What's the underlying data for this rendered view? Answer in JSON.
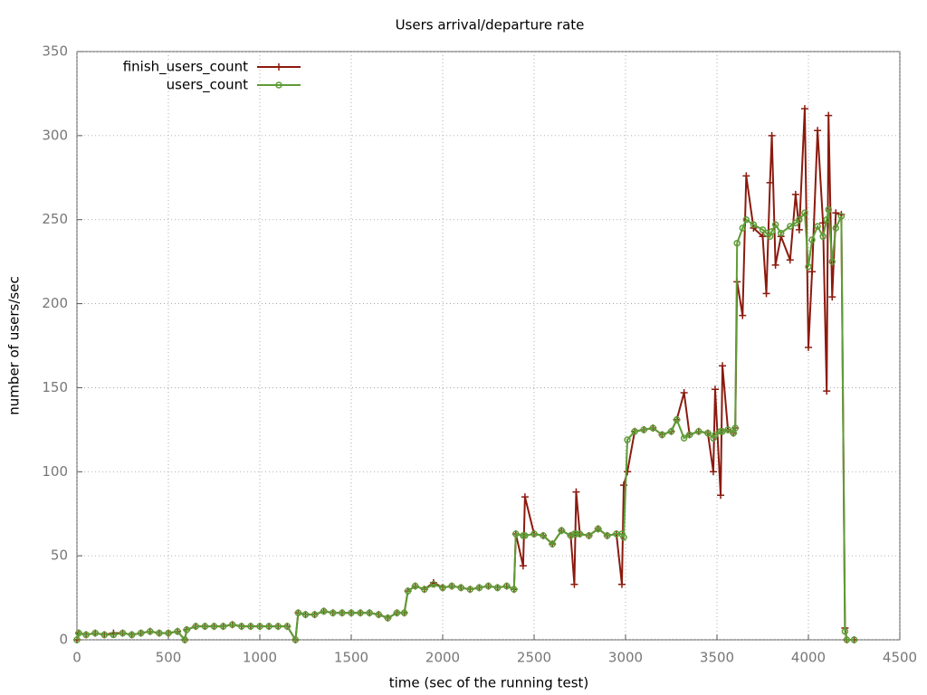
{
  "chart_data": {
    "type": "line",
    "title": "Users arrival/departure rate",
    "x_label": "time (sec of the running test)",
    "y_label": "number of users/sec",
    "x": [
      0,
      10,
      50,
      100,
      150,
      200,
      250,
      300,
      350,
      400,
      450,
      500,
      550,
      590,
      600,
      650,
      700,
      750,
      800,
      850,
      900,
      950,
      1000,
      1050,
      1100,
      1150,
      1195,
      1210,
      1250,
      1300,
      1350,
      1400,
      1450,
      1500,
      1550,
      1600,
      1650,
      1700,
      1750,
      1790,
      1810,
      1850,
      1900,
      1950,
      2000,
      2050,
      2100,
      2150,
      2200,
      2250,
      2300,
      2350,
      2390,
      2400,
      2440,
      2450,
      2500,
      2550,
      2600,
      2650,
      2700,
      2720,
      2730,
      2750,
      2800,
      2850,
      2900,
      2950,
      2980,
      2990,
      3010,
      3050,
      3100,
      3150,
      3200,
      3250,
      3280,
      3320,
      3350,
      3400,
      3450,
      3480,
      3490,
      3520,
      3530,
      3560,
      3590,
      3600,
      3610,
      3640,
      3660,
      3700,
      3750,
      3770,
      3790,
      3800,
      3820,
      3850,
      3900,
      3930,
      3950,
      3980,
      4000,
      4020,
      4050,
      4080,
      4100,
      4110,
      4130,
      4150,
      4180,
      4200,
      4210,
      4250
    ],
    "series": [
      {
        "name": "finish_users_count",
        "color": "#8b1a0e",
        "marker": "plus",
        "values": [
          0,
          4,
          3,
          4,
          3,
          4,
          4,
          3,
          4,
          5,
          4,
          4,
          5,
          0,
          6,
          8,
          8,
          8,
          8,
          9,
          8,
          8,
          8,
          8,
          8,
          8,
          0,
          16,
          15,
          15,
          17,
          16,
          16,
          16,
          16,
          16,
          15,
          13,
          16,
          16,
          29,
          32,
          30,
          34,
          31,
          32,
          31,
          30,
          31,
          32,
          31,
          32,
          30,
          63,
          44,
          85,
          63,
          62,
          57,
          65,
          62,
          33,
          88,
          63,
          62,
          66,
          62,
          63,
          33,
          92,
          100,
          124,
          125,
          126,
          122,
          124,
          131,
          147,
          122,
          124,
          123,
          100,
          149,
          86,
          163,
          125,
          123,
          126,
          213,
          193,
          276,
          245,
          240,
          206,
          272,
          300,
          223,
          240,
          226,
          265,
          244,
          316,
          174,
          219,
          303,
          248,
          148,
          312,
          204,
          254,
          253,
          7,
          0,
          0
        ]
      },
      {
        "name": "users_count",
        "color": "#5e9c36",
        "marker": "circle",
        "values": [
          0,
          4,
          3,
          4,
          3,
          3,
          4,
          3,
          4,
          5,
          4,
          4,
          5,
          0,
          6,
          8,
          8,
          8,
          8,
          9,
          8,
          8,
          8,
          8,
          8,
          8,
          0,
          16,
          15,
          15,
          17,
          16,
          16,
          16,
          16,
          16,
          15,
          13,
          16,
          16,
          29,
          32,
          30,
          33,
          31,
          32,
          31,
          30,
          31,
          32,
          31,
          32,
          30,
          63,
          62,
          62,
          63,
          62,
          57,
          65,
          62,
          63,
          63,
          63,
          62,
          66,
          62,
          63,
          63,
          61,
          119,
          124,
          125,
          126,
          122,
          124,
          131,
          120,
          122,
          124,
          123,
          120,
          122,
          124,
          124,
          125,
          123,
          126,
          236,
          245,
          250,
          247,
          244,
          242,
          240,
          243,
          247,
          242,
          246,
          248,
          250,
          254,
          222,
          238,
          246,
          240,
          250,
          256,
          225,
          245,
          252,
          5,
          0,
          0
        ]
      }
    ],
    "xlim": [
      0,
      4500
    ],
    "xticks": [
      0,
      500,
      1000,
      1500,
      2000,
      2500,
      3000,
      3500,
      4000,
      4500
    ],
    "ylim": [
      0,
      350
    ],
    "yticks": [
      0,
      50,
      100,
      150,
      200,
      250,
      300,
      350
    ],
    "grid": true,
    "legend": "top-left"
  }
}
